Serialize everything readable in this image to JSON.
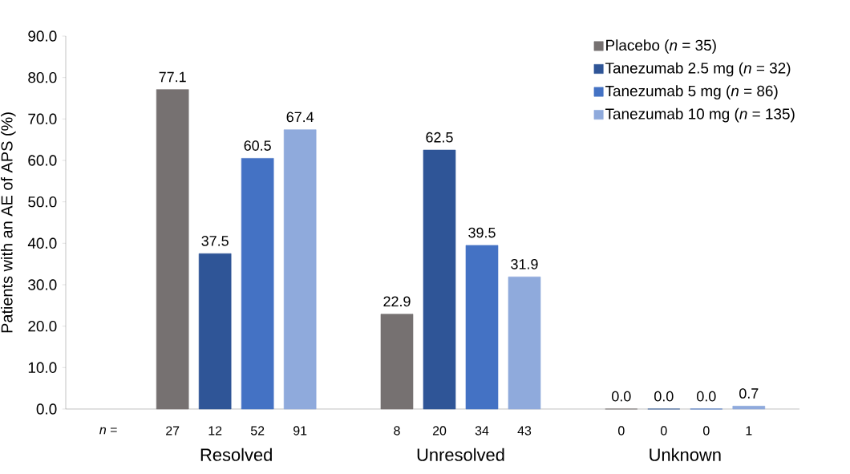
{
  "chart_data": {
    "type": "bar",
    "ylabel": "Patients with an AE of APS (%)",
    "categories": [
      "Resolved",
      "Unresolved",
      "Unknown"
    ],
    "series": [
      {
        "name": "Placebo (*n* = 35)",
        "color": "#767171",
        "values": [
          77.1,
          22.9,
          0.0
        ],
        "value_labels": [
          "77.1",
          "22.9",
          "0.0"
        ]
      },
      {
        "name": "Tanezumab 2.5 mg (*n* = 32)",
        "color": "#2f5597",
        "values": [
          37.5,
          62.5,
          0.0
        ],
        "value_labels": [
          "37.5",
          "62.5",
          "0.0"
        ]
      },
      {
        "name": "Tanezumab 5 mg (*n* = 86)",
        "color": "#4472c4",
        "values": [
          60.5,
          39.5,
          0.0
        ],
        "value_labels": [
          "60.5",
          "39.5",
          "0.0"
        ]
      },
      {
        "name": "Tanezumab 10 mg (*n* = 135)",
        "color": "#8faadc",
        "values": [
          67.4,
          31.9,
          0.7
        ],
        "value_labels": [
          "67.4",
          "31.9",
          "0.7"
        ]
      }
    ],
    "ylim": [
      0,
      90
    ],
    "yticks": [
      {
        "value": 0,
        "label": "0.0"
      },
      {
        "value": 10,
        "label": "10.0"
      },
      {
        "value": 20,
        "label": "20.0"
      },
      {
        "value": 30,
        "label": "30.0"
      },
      {
        "value": 40,
        "label": "40.0"
      },
      {
        "value": 50,
        "label": "50.0"
      },
      {
        "value": 60,
        "label": "60.0"
      },
      {
        "value": 70,
        "label": "70.0"
      },
      {
        "value": 80,
        "label": "80.0"
      },
      {
        "value": 90,
        "label": "90.0"
      }
    ],
    "legend": "top right",
    "grid": false,
    "annotations": [
      "*n* =",
      "27",
      "12",
      "52",
      "91",
      "8",
      "20",
      "34",
      "43",
      "0",
      "0",
      "0",
      "1"
    ]
  }
}
